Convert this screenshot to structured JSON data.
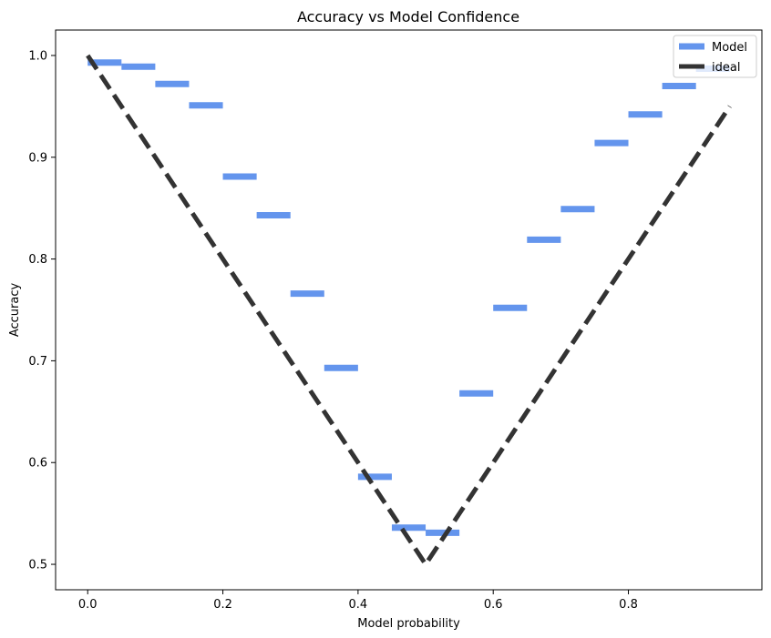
{
  "chart_data": {
    "type": "line",
    "title": "Accuracy vs Model Confidence",
    "xlabel": "Model probability",
    "ylabel": "Accuracy",
    "xlim": [
      -0.0475,
      0.9975
    ],
    "ylim": [
      0.475,
      1.025
    ],
    "x_ticks": [
      0.0,
      0.2,
      0.4,
      0.6,
      0.8
    ],
    "x_tick_labels": [
      "0.0",
      "0.2",
      "0.4",
      "0.6",
      "0.8"
    ],
    "y_ticks": [
      0.5,
      0.6,
      0.7,
      0.8,
      0.9,
      1.0
    ],
    "y_tick_labels": [
      "0.5",
      "0.6",
      "0.7",
      "0.8",
      "0.9",
      "1.0"
    ],
    "grid": false,
    "legend": {
      "position": "top-right",
      "entries": [
        {
          "label": "Model",
          "color": "#6495ed",
          "style": "solid"
        },
        {
          "label": "ideal",
          "color": "#333333",
          "style": "dashed"
        }
      ]
    },
    "series": [
      {
        "name": "Model",
        "kind": "step-segments",
        "color": "#6495ed",
        "bin_width": 0.05,
        "x": [
          0.0,
          0.05,
          0.1,
          0.15,
          0.2,
          0.25,
          0.3,
          0.35,
          0.4,
          0.45,
          0.5,
          0.55,
          0.6,
          0.65,
          0.7,
          0.75,
          0.8,
          0.85,
          0.9
        ],
        "y": [
          0.993,
          0.989,
          0.972,
          0.951,
          0.881,
          0.843,
          0.766,
          0.693,
          0.586,
          0.536,
          0.531,
          0.668,
          0.752,
          0.819,
          0.849,
          0.914,
          0.942,
          0.97,
          0.987
        ]
      },
      {
        "name": "ideal",
        "kind": "line",
        "color": "#333333",
        "dashed": true,
        "x": [
          0.0,
          0.5,
          0.95
        ],
        "y": [
          1.0,
          0.5,
          0.95
        ]
      }
    ]
  }
}
